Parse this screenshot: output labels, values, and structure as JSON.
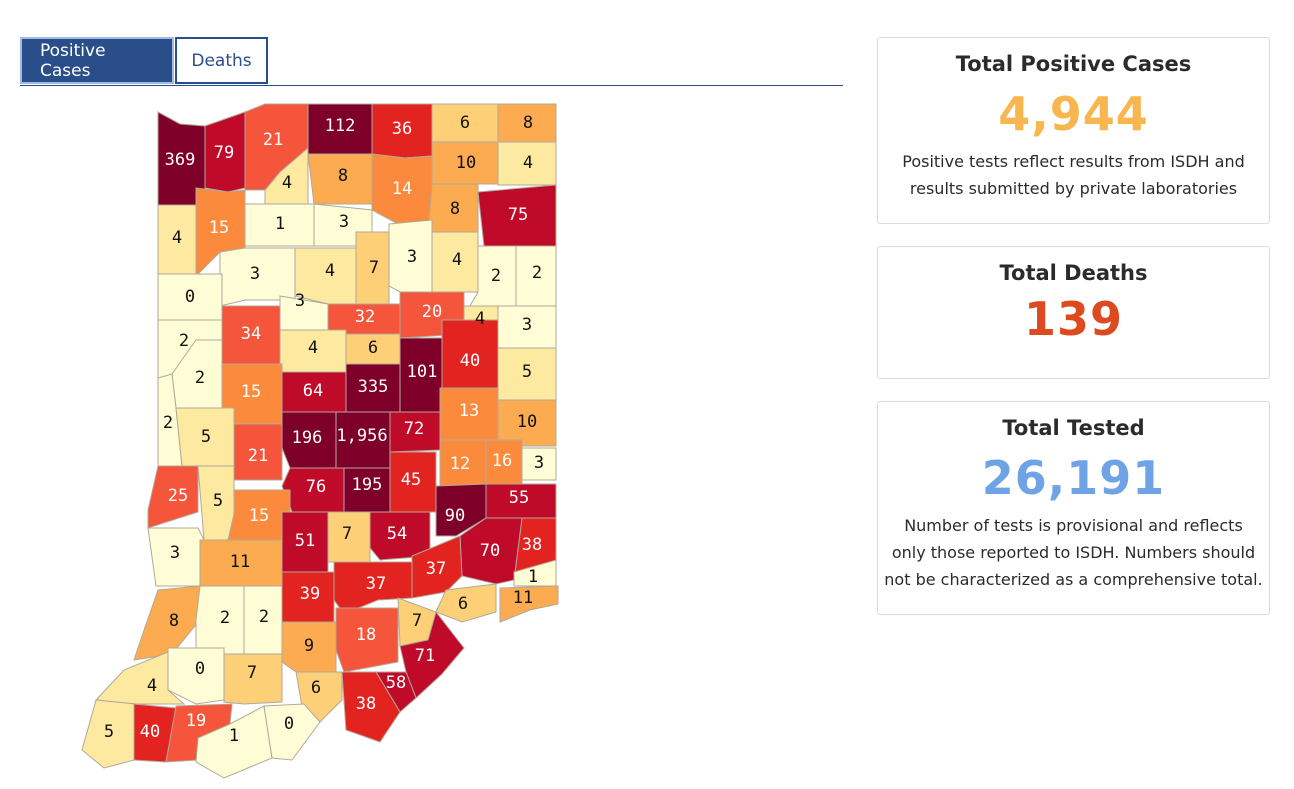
{
  "tabs": [
    {
      "label": "Positive Cases",
      "active": true
    },
    {
      "label": "Deaths",
      "active": false
    }
  ],
  "colors": {
    "scale": [
      "#fffdd6",
      "#fde9a0",
      "#fdd078",
      "#fcab50",
      "#fb8a3c",
      "#f5553b",
      "#e2231f",
      "#c00a2a",
      "#7e0029"
    ],
    "tab_active": "#294e8a",
    "positive": "#f7b64e",
    "deaths": "#de4a1f",
    "tested": "#6ea3e6"
  },
  "stats": {
    "positive": {
      "title": "Total Positive Cases",
      "value": "4,944",
      "note_line1": "Positive tests reflect results from ISDH and",
      "note_line2": "results submitted by private laboratories"
    },
    "deaths": {
      "title": "Total Deaths",
      "value": "139"
    },
    "tested": {
      "title": "Total Tested",
      "value": "26,191",
      "note_line1": "Number of tests is provisional and reflects",
      "note_line2": "only those reported to ISDH. Numbers should",
      "note_line3": "not be characterized as a comprehensive total."
    }
  },
  "map": {
    "county_values": [
      369,
      79,
      21,
      112,
      36,
      6,
      8,
      10,
      4,
      4,
      8,
      14,
      8,
      75,
      4,
      15,
      1,
      3,
      7,
      3,
      4,
      2,
      2,
      3,
      4,
      0,
      3,
      20,
      32,
      4,
      3,
      2,
      34,
      4,
      6,
      40,
      101,
      2,
      5,
      335,
      64,
      15,
      2,
      5,
      196,
      1956,
      72,
      13,
      10,
      21,
      12,
      16,
      3,
      25,
      5,
      76,
      195,
      45,
      55,
      15,
      90,
      51,
      7,
      54,
      38,
      3,
      11,
      70,
      37,
      37,
      1,
      39,
      6,
      11,
      8,
      2,
      2,
      9,
      18,
      7,
      71,
      0,
      7,
      4,
      6,
      58,
      5,
      40,
      19,
      38,
      1,
      0
    ],
    "county_labels": [
      "369",
      "79",
      "21",
      "112",
      "36",
      "6",
      "8",
      "10",
      "4",
      "4",
      "8",
      "14",
      "8",
      "75",
      "4",
      "15",
      "1",
      "3",
      "7",
      "3",
      "4",
      "2",
      "2",
      "3",
      "4",
      "0",
      "3",
      "20",
      "32",
      "4",
      "3",
      "2",
      "34",
      "4",
      "6",
      "40",
      "101",
      "2",
      "5",
      "335",
      "64",
      "15",
      "2",
      "5",
      "196",
      "1,956",
      "72",
      "13",
      "10",
      "21",
      "12",
      "16",
      "3",
      "25",
      "5",
      "76",
      "195",
      "45",
      "55",
      "15",
      "90",
      "51",
      "7",
      "54",
      "38",
      "3",
      "11",
      "70",
      "37",
      "37",
      "1",
      "39",
      "6",
      "11",
      "8",
      "2",
      "2",
      "9",
      "18",
      "7",
      "71",
      "0",
      "7",
      "4",
      "6",
      "58",
      "5",
      "40",
      "19",
      "38",
      "1",
      "0"
    ]
  }
}
